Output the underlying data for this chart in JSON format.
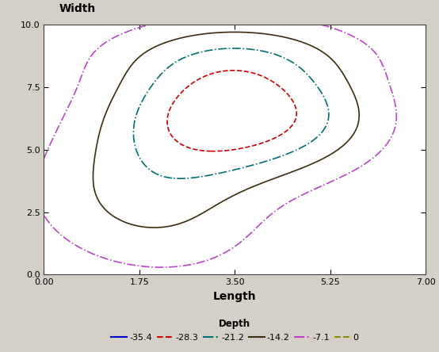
{
  "xlabel": "Length",
  "ylabel": "Width",
  "xlim": [
    0.0,
    7.0
  ],
  "ylim": [
    0.0,
    10.0
  ],
  "xticks": [
    0.0,
    1.75,
    3.5,
    5.25,
    7.0
  ],
  "yticks": [
    0.0,
    2.5,
    5.0,
    7.5,
    10.0
  ],
  "levels": [
    -35.4,
    -28.3,
    -21.2,
    -14.2,
    -7.1,
    -0.001
  ],
  "level_colors": [
    "#0000cc",
    "#cc0000",
    "#007070",
    "#3d2b10",
    "#bb44cc",
    "#8a8a00"
  ],
  "level_linestyles": [
    "solid",
    "dashed",
    "dashdot",
    "solid",
    "dashdot",
    "dashed"
  ],
  "legend_labels": [
    "-35.4",
    "-28.3",
    "-21.2",
    "-14.2",
    "-7.1",
    "0"
  ],
  "legend_title": "Depth",
  "background_color": "#d4d0c8",
  "plot_bg_color": "#ffffff",
  "figwidth": 5.54,
  "figheight": 4.44,
  "dpi": 100
}
